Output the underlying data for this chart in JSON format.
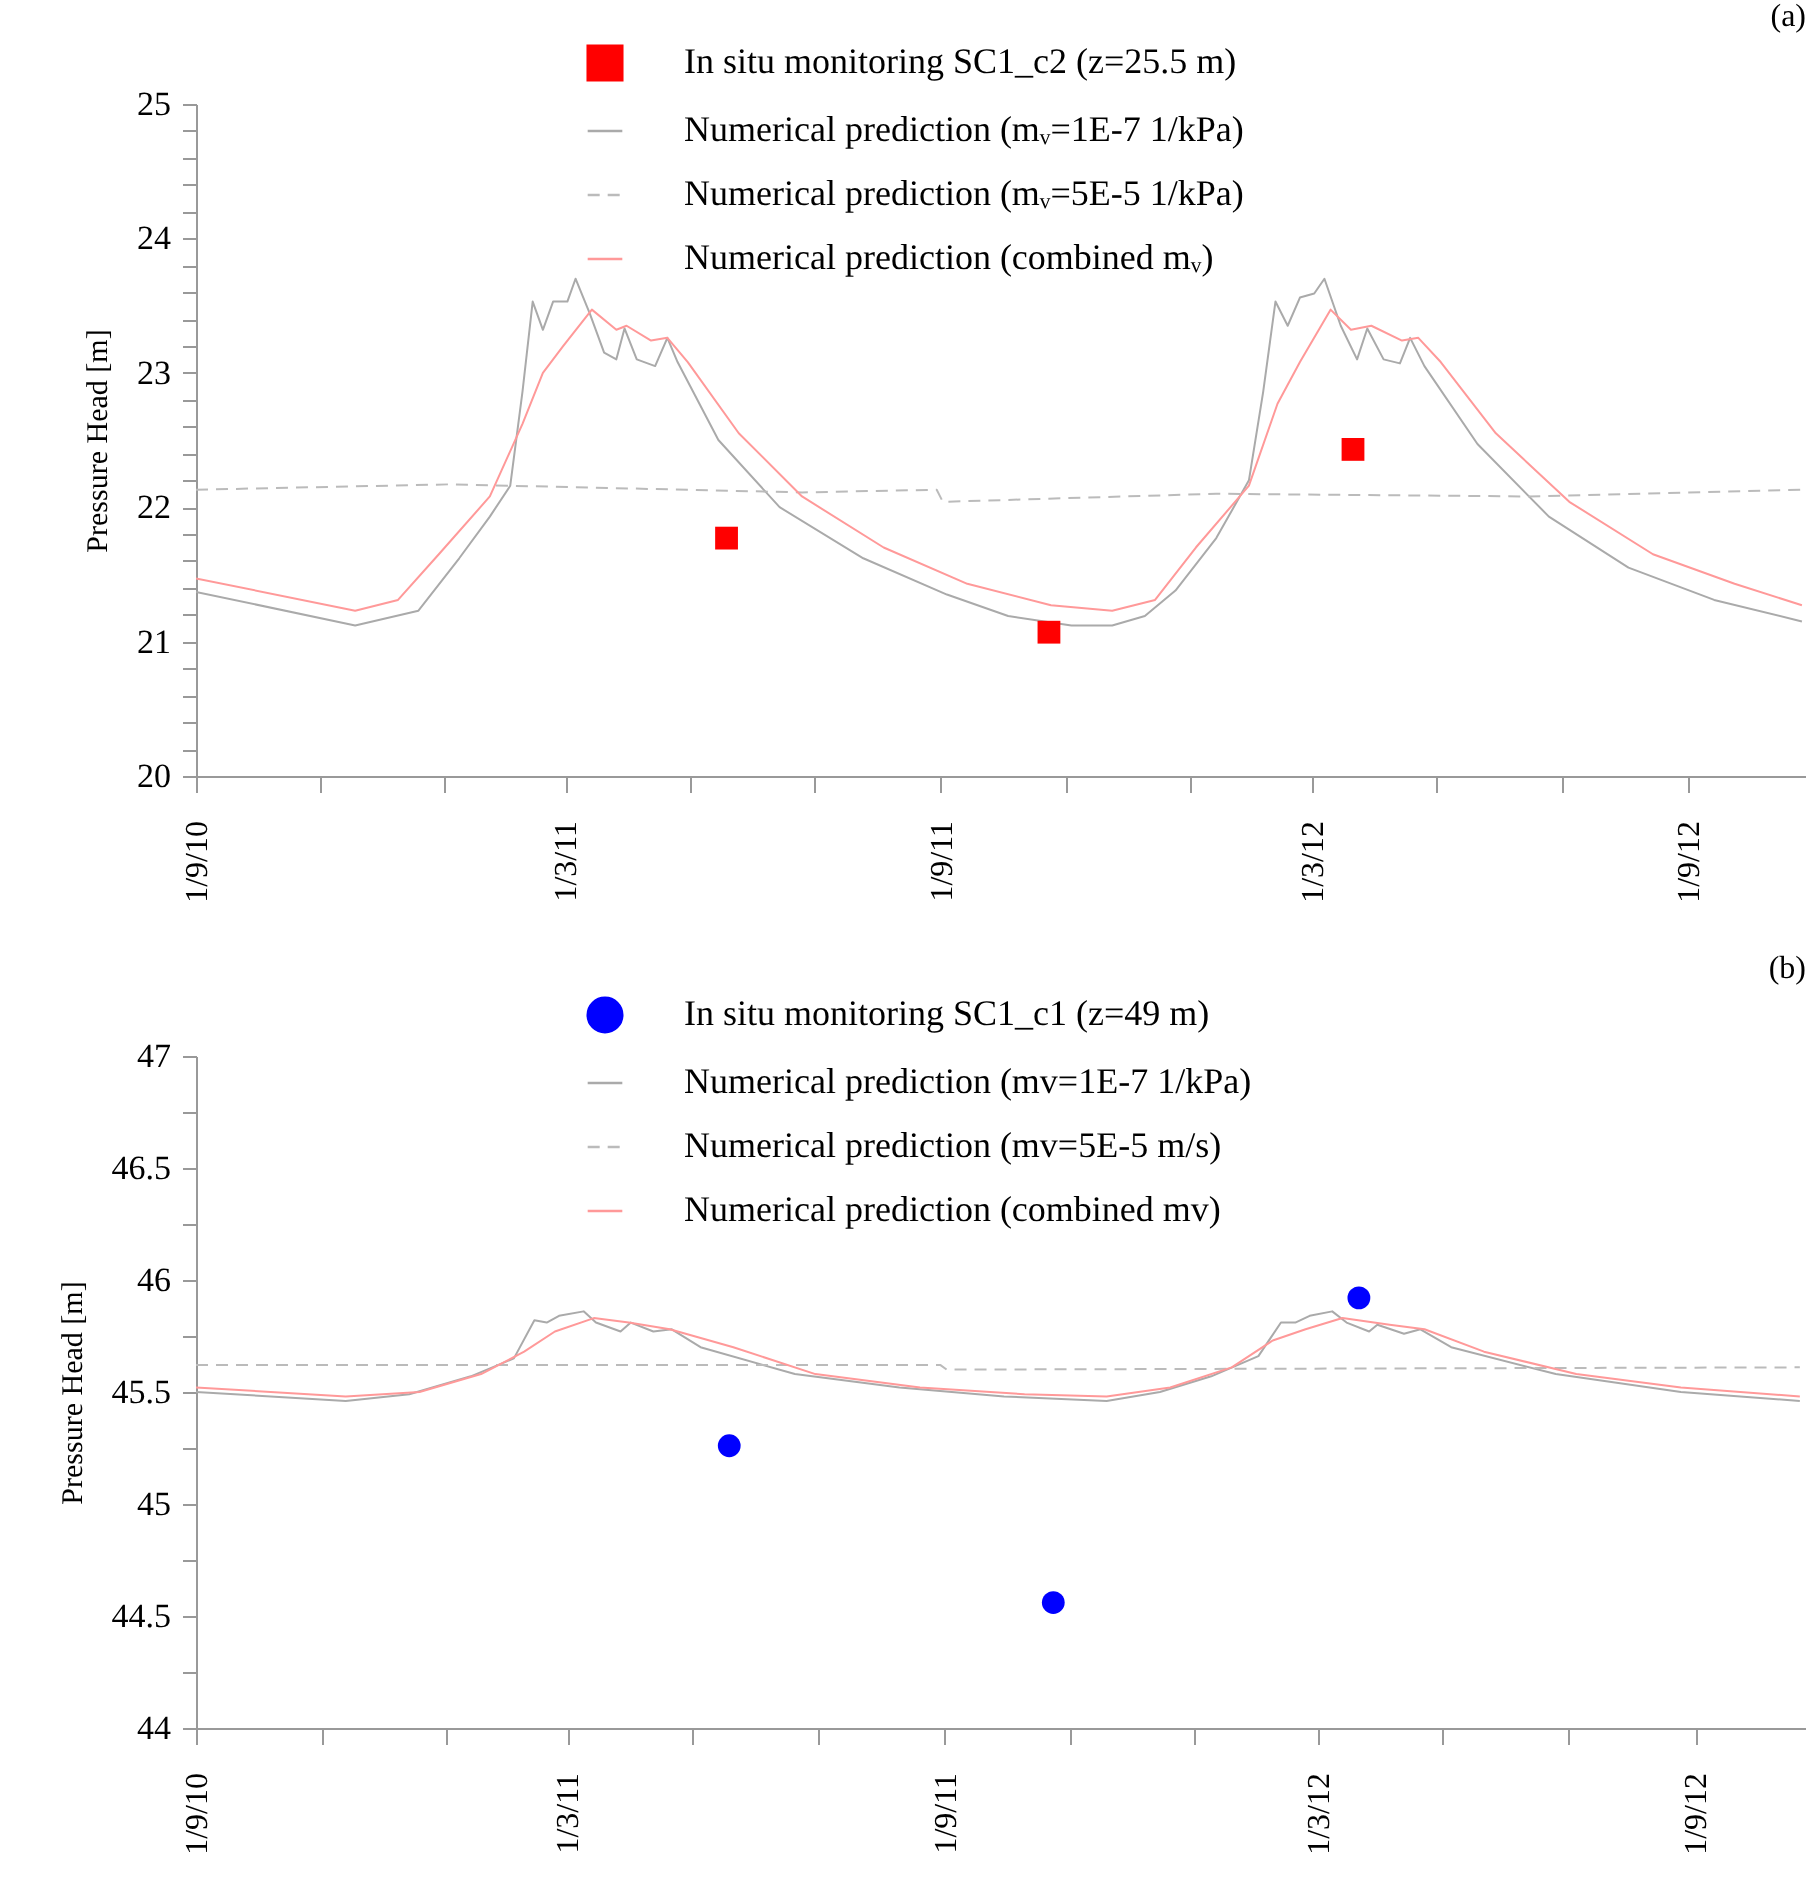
{
  "chart_data": [
    {
      "type": "line",
      "title": "(a)",
      "ylabel": "Pressure Head [m]",
      "legend": "top",
      "xlim": [
        "2010-09-01",
        "2012-10-29"
      ],
      "ylim": [
        20,
        25
      ],
      "xticks": [
        {
          "value": "2010-09-01",
          "label": "1/9/10"
        },
        {
          "value": "2010-11-01",
          "label": null
        },
        {
          "value": "2011-01-01",
          "label": null
        },
        {
          "value": "2011-03-01",
          "label": "1/3/11"
        },
        {
          "value": "2011-05-01",
          "label": null
        },
        {
          "value": "2011-07-01",
          "label": null
        },
        {
          "value": "2011-09-01",
          "label": "1/9/11"
        },
        {
          "value": "2011-11-01",
          "label": null
        },
        {
          "value": "2012-01-01",
          "label": null
        },
        {
          "value": "2012-03-01",
          "label": "1/3/12"
        },
        {
          "value": "2012-05-01",
          "label": null
        },
        {
          "value": "2012-07-01",
          "label": null
        },
        {
          "value": "2012-09-01",
          "label": "1/9/12"
        }
      ],
      "yticks": [
        20,
        {
          "value": 20.2,
          "label": null
        },
        {
          "value": 20.4,
          "label": null
        },
        {
          "value": 20.6,
          "label": null
        },
        {
          "value": 20.8,
          "label": null
        },
        21,
        {
          "value": 21.2,
          "label": null
        },
        {
          "value": 21.4,
          "label": null
        },
        {
          "value": 21.6,
          "label": null
        },
        {
          "value": 21.8,
          "label": null
        },
        22,
        {
          "value": 22.2,
          "label": null
        },
        {
          "value": 22.4,
          "label": null
        },
        {
          "value": 22.6,
          "label": null
        },
        {
          "value": 22.8,
          "label": null
        },
        23,
        {
          "value": 23.2,
          "label": null
        },
        {
          "value": 23.4,
          "label": null
        },
        {
          "value": 23.6,
          "label": null
        },
        {
          "value": 23.8,
          "label": null
        },
        24,
        {
          "value": 24.2,
          "label": null
        },
        {
          "value": 24.4,
          "label": null
        },
        {
          "value": 24.6,
          "label": null
        },
        {
          "value": 24.8,
          "label": null
        },
        25
      ],
      "series": [
        {
          "name": "In situ monitoring SC1_c2 (z=25.5 m)",
          "type": "scatter",
          "marker": "square",
          "color": "#ff0000",
          "x": [
            "2011-05-19",
            "2011-10-24",
            "2012-03-21"
          ],
          "values": [
            21.77,
            21.07,
            22.43
          ]
        },
        {
          "name": "Numerical prediction (mᵥ=1E-7 1/kPa)",
          "line_style": "solid",
          "color": "#aaaaaa",
          "x": [
            "2010-09-01",
            "2010-11-18",
            "2010-12-19",
            "2011-01-08",
            "2011-01-23",
            "2011-02-02",
            "2011-02-08",
            "2011-02-13",
            "2011-02-18",
            "2011-02-23",
            "2011-03-02",
            "2011-03-06",
            "2011-03-13",
            "2011-03-20",
            "2011-03-26",
            "2011-03-30",
            "2011-04-05",
            "2011-04-14",
            "2011-04-20",
            "2011-04-25",
            "2011-05-15",
            "2011-06-14",
            "2011-07-25",
            "2011-09-04",
            "2011-10-04",
            "2011-11-04",
            "2011-11-24",
            "2011-12-10",
            "2011-12-25",
            "2012-01-14",
            "2012-01-30",
            "2012-02-06",
            "2012-02-12",
            "2012-02-18",
            "2012-02-24",
            "2012-03-02",
            "2012-03-07",
            "2012-03-15",
            "2012-03-23",
            "2012-03-28",
            "2012-04-05",
            "2012-04-13",
            "2012-04-18",
            "2012-04-25",
            "2012-05-21",
            "2012-06-25",
            "2012-08-03",
            "2012-09-14",
            "2012-10-27"
          ],
          "values": [
            21.37,
            21.12,
            21.23,
            21.62,
            21.93,
            22.16,
            22.86,
            23.53,
            23.32,
            23.53,
            23.53,
            23.7,
            23.44,
            23.15,
            23.1,
            23.33,
            23.1,
            23.05,
            23.26,
            23.08,
            22.5,
            22.0,
            21.62,
            21.35,
            21.19,
            21.12,
            21.12,
            21.19,
            21.38,
            21.77,
            22.2,
            22.86,
            23.53,
            23.35,
            23.56,
            23.59,
            23.7,
            23.35,
            23.1,
            23.33,
            23.1,
            23.07,
            23.26,
            23.05,
            22.47,
            21.93,
            21.55,
            21.31,
            21.15
          ]
        },
        {
          "name": "Numerical prediction (mᵥ=5E-5 1/kPa)",
          "line_style": "dashed",
          "color": "#bbbbbb",
          "x": [
            "2010-09-01",
            "2011-01-03",
            "2011-06-25",
            "2011-08-30",
            "2011-09-02",
            "2012-01-14",
            "2012-06-15",
            "2012-10-27"
          ],
          "values": [
            22.13,
            22.17,
            22.11,
            22.13,
            22.04,
            22.1,
            22.08,
            22.13
          ]
        },
        {
          "name": "Numerical prediction (combined mᵥ)",
          "line_style": "solid",
          "color": "#ff9999",
          "x": [
            "2010-09-01",
            "2010-11-18",
            "2010-12-09",
            "2010-12-29",
            "2011-01-23",
            "2011-02-08",
            "2011-02-18",
            "2011-02-28",
            "2011-03-14",
            "2011-03-26",
            "2011-03-31",
            "2011-04-12",
            "2011-04-20",
            "2011-04-30",
            "2011-05-25",
            "2011-06-25",
            "2011-08-04",
            "2011-09-14",
            "2011-10-25",
            "2011-11-24",
            "2011-12-15",
            "2012-01-04",
            "2012-01-30",
            "2012-02-13",
            "2012-02-24",
            "2012-03-10",
            "2012-03-20",
            "2012-03-30",
            "2012-04-14",
            "2012-04-22",
            "2012-05-03",
            "2012-05-30",
            "2012-07-05",
            "2012-08-15",
            "2012-09-24",
            "2012-10-27"
          ],
          "values": [
            21.47,
            21.23,
            21.31,
            21.65,
            22.08,
            22.62,
            23.0,
            23.2,
            23.47,
            23.32,
            23.35,
            23.24,
            23.26,
            23.08,
            22.55,
            22.08,
            21.7,
            21.43,
            21.27,
            21.23,
            21.31,
            21.7,
            22.16,
            22.77,
            23.08,
            23.47,
            23.32,
            23.35,
            23.24,
            23.26,
            23.08,
            22.55,
            22.04,
            21.65,
            21.43,
            21.27
          ]
        }
      ]
    },
    {
      "type": "line",
      "title": "(b)",
      "ylabel": "Pressure Head [m]",
      "legend": "top",
      "xlim": [
        "2010-09-01",
        "2012-10-25"
      ],
      "ylim": [
        44,
        47
      ],
      "xticks": [
        {
          "value": "2010-09-01",
          "label": "1/9/10"
        },
        {
          "value": "2010-11-01",
          "label": null
        },
        {
          "value": "2011-01-01",
          "label": null
        },
        {
          "value": "2011-03-01",
          "label": "1/3/11"
        },
        {
          "value": "2011-05-01",
          "label": null
        },
        {
          "value": "2011-07-01",
          "label": null
        },
        {
          "value": "2011-09-01",
          "label": "1/9/11"
        },
        {
          "value": "2011-11-01",
          "label": null
        },
        {
          "value": "2012-01-01",
          "label": null
        },
        {
          "value": "2012-03-01",
          "label": "1/3/12"
        },
        {
          "value": "2012-05-01",
          "label": null
        },
        {
          "value": "2012-07-01",
          "label": null
        },
        {
          "value": "2012-09-01",
          "label": "1/9/12"
        }
      ],
      "yticks": [
        44,
        {
          "value": 44.25,
          "label": null
        },
        44.5,
        {
          "value": 44.75,
          "label": null
        },
        45,
        {
          "value": 45.25,
          "label": null
        },
        45.5,
        {
          "value": 45.75,
          "label": null
        },
        46,
        {
          "value": 46.25,
          "label": null
        },
        46.5,
        {
          "value": 46.75,
          "label": null
        },
        47
      ],
      "series": [
        {
          "name": "In situ monitoring SC1_c1 (z=49 m)",
          "type": "scatter",
          "marker": "circle",
          "color": "#0000ff",
          "x": [
            "2011-05-19",
            "2011-10-24",
            "2012-03-21"
          ],
          "values": [
            45.26,
            44.56,
            45.92
          ]
        },
        {
          "name": "Numerical prediction (mv=1E-7 1/kPa)",
          "line_style": "solid",
          "color": "#aaaaaa",
          "x": [
            "2010-09-01",
            "2010-11-13",
            "2010-12-14",
            "2011-01-13",
            "2011-02-03",
            "2011-02-13",
            "2011-02-19",
            "2011-02-25",
            "2011-03-09",
            "2011-03-15",
            "2011-03-27",
            "2011-04-01",
            "2011-04-12",
            "2011-04-21",
            "2011-05-05",
            "2011-06-20",
            "2011-08-10",
            "2011-09-30",
            "2011-11-19",
            "2011-12-15",
            "2012-01-09",
            "2012-02-01",
            "2012-02-12",
            "2012-02-19",
            "2012-02-26",
            "2012-03-08",
            "2012-03-15",
            "2012-03-26",
            "2012-03-30",
            "2012-04-12",
            "2012-04-20",
            "2012-05-05",
            "2012-06-25",
            "2012-08-25",
            "2012-10-22"
          ],
          "values": [
            45.5,
            45.46,
            45.49,
            45.57,
            45.65,
            45.82,
            45.81,
            45.84,
            45.86,
            45.81,
            45.77,
            45.81,
            45.77,
            45.78,
            45.7,
            45.58,
            45.52,
            45.48,
            45.46,
            45.5,
            45.57,
            45.66,
            45.81,
            45.81,
            45.84,
            45.86,
            45.81,
            45.77,
            45.8,
            45.76,
            45.78,
            45.7,
            45.58,
            45.5,
            45.46
          ]
        },
        {
          "name": "Numerical prediction (mv=5E-5 m/s)",
          "line_style": "dashed",
          "color": "#bbbbbb",
          "x": [
            "2010-09-01",
            "2011-08-30",
            "2011-09-02",
            "2012-10-22"
          ],
          "values": [
            45.62,
            45.62,
            45.6,
            45.61
          ]
        },
        {
          "name": "Numerical prediction (combined mv)",
          "line_style": "solid",
          "color": "#ff9999",
          "x": [
            "2010-09-01",
            "2010-11-13",
            "2010-12-19",
            "2011-01-18",
            "2011-02-08",
            "2011-02-23",
            "2011-03-14",
            "2011-03-31",
            "2011-04-20",
            "2011-05-21",
            "2011-06-30",
            "2011-08-20",
            "2011-10-10",
            "2011-11-19",
            "2011-12-20",
            "2012-01-19",
            "2012-02-08",
            "2012-02-24",
            "2012-03-13",
            "2012-04-05",
            "2012-04-22",
            "2012-05-21",
            "2012-07-05",
            "2012-08-25",
            "2012-10-22"
          ],
          "values": [
            45.52,
            45.48,
            45.5,
            45.58,
            45.68,
            45.77,
            45.83,
            45.81,
            45.78,
            45.7,
            45.58,
            45.52,
            45.49,
            45.48,
            45.52,
            45.61,
            45.73,
            45.78,
            45.83,
            45.8,
            45.78,
            45.68,
            45.58,
            45.52,
            45.48
          ]
        }
      ]
    }
  ]
}
